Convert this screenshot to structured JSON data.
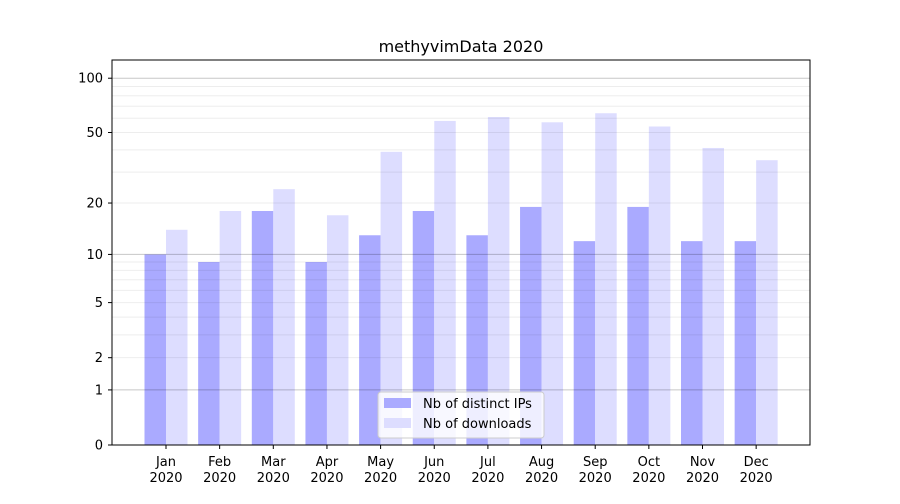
{
  "chart_data": {
    "type": "bar",
    "title": "methyvimData 2020",
    "xlabel": "",
    "ylabel": "",
    "yscale": "log10(1+y)",
    "ylim": [
      0,
      120
    ],
    "yticks": [
      0,
      1,
      2,
      5,
      10,
      20,
      50,
      100
    ],
    "grid": true,
    "legend_position": "bottom-center",
    "categories": [
      "Jan\n2020",
      "Feb\n2020",
      "Mar\n2020",
      "Apr\n2020",
      "May\n2020",
      "Jun\n2020",
      "Jul\n2020",
      "Aug\n2020",
      "Sep\n2020",
      "Oct\n2020",
      "Nov\n2020",
      "Dec\n2020"
    ],
    "series": [
      {
        "name": "Nb of distinct IPs",
        "color": "#aaaaff",
        "values": [
          10,
          9,
          18,
          9,
          13,
          18,
          13,
          19,
          12,
          19,
          12,
          12
        ]
      },
      {
        "name": "Nb of downloads",
        "color": "#ddddff",
        "values": [
          14,
          18,
          24,
          17,
          39,
          58,
          61,
          57,
          64,
          54,
          41,
          35
        ]
      }
    ]
  }
}
